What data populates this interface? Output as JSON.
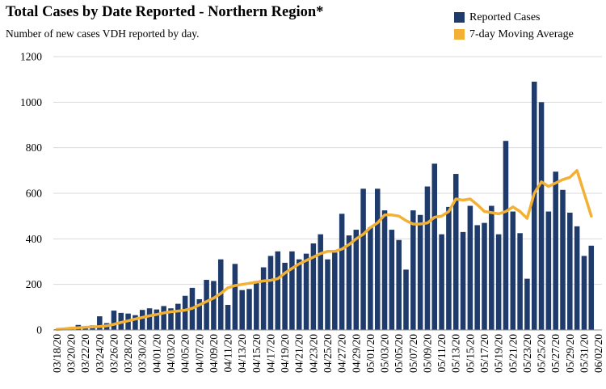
{
  "chart_data": {
    "type": "bar",
    "title": "Total Cases by Date Reported - Northern Region*",
    "subtitle": "Number of new cases VDH reported by day.",
    "ylim": [
      0,
      1200
    ],
    "yticks": [
      0,
      200,
      400,
      600,
      800,
      1000,
      1200
    ],
    "grid": "horizontal",
    "legend_position": "top-right",
    "x_label_every": 2,
    "categories": [
      "03/18/20",
      "03/19/20",
      "03/20/20",
      "03/21/20",
      "03/22/20",
      "03/23/20",
      "03/24/20",
      "03/25/20",
      "03/26/20",
      "03/27/20",
      "03/28/20",
      "03/29/20",
      "03/30/20",
      "03/31/20",
      "04/01/20",
      "04/02/20",
      "04/03/20",
      "04/04/20",
      "04/05/20",
      "04/06/20",
      "04/07/20",
      "04/08/20",
      "04/09/20",
      "04/10/20",
      "04/11/20",
      "04/12/20",
      "04/13/20",
      "04/14/20",
      "04/15/20",
      "04/16/20",
      "04/17/20",
      "04/18/20",
      "04/19/20",
      "04/20/20",
      "04/21/20",
      "04/22/20",
      "04/23/20",
      "04/24/20",
      "04/25/20",
      "04/26/20",
      "04/27/20",
      "04/28/20",
      "04/29/20",
      "04/30/20",
      "05/01/20",
      "05/02/20",
      "05/03/20",
      "05/04/20",
      "05/05/20",
      "05/06/20",
      "05/07/20",
      "05/08/20",
      "05/09/20",
      "05/10/20",
      "05/11/20",
      "05/12/20",
      "05/13/20",
      "05/14/20",
      "05/15/20",
      "05/16/20",
      "05/17/20",
      "05/18/20",
      "05/19/20",
      "05/20/20",
      "05/21/20",
      "05/22/20",
      "05/23/20",
      "05/24/20",
      "05/25/20",
      "05/26/20",
      "05/27/20",
      "05/28/20",
      "05/29/20",
      "05/30/20",
      "05/31/20",
      "06/01/20",
      "06/02/20"
    ],
    "series": [
      {
        "name": "Reported Cases",
        "type": "bar",
        "color": "#1f3b6b",
        "values": [
          3,
          8,
          10,
          22,
          15,
          20,
          60,
          30,
          85,
          75,
          72,
          65,
          88,
          95,
          90,
          105,
          95,
          115,
          150,
          185,
          135,
          220,
          215,
          310,
          110,
          290,
          175,
          180,
          215,
          275,
          325,
          345,
          295,
          345,
          310,
          335,
          380,
          420,
          310,
          340,
          510,
          415,
          440,
          620,
          450,
          620,
          525,
          440,
          395,
          265,
          525,
          505,
          630,
          730,
          420,
          540,
          685,
          430,
          545,
          460,
          470,
          545,
          420,
          830,
          520,
          425,
          225,
          1090,
          1000,
          520,
          695,
          615,
          515,
          455,
          325,
          370,
          0
        ]
      },
      {
        "name": "7-day Moving Average",
        "type": "line",
        "color": "#f2b134",
        "values": [
          3,
          5,
          8,
          10,
          12,
          13,
          15,
          18,
          25,
          33,
          40,
          48,
          55,
          62,
          68,
          75,
          80,
          83,
          87,
          95,
          110,
          125,
          140,
          160,
          185,
          195,
          200,
          205,
          210,
          215,
          218,
          225,
          250,
          270,
          290,
          305,
          320,
          335,
          345,
          345,
          355,
          375,
          400,
          420,
          450,
          470,
          505,
          505,
          500,
          480,
          465,
          465,
          470,
          495,
          500,
          520,
          575,
          570,
          575,
          550,
          520,
          515,
          510,
          520,
          540,
          520,
          490,
          600,
          650,
          630,
          645,
          660,
          670,
          700,
          600,
          500,
          null
        ]
      }
    ]
  }
}
